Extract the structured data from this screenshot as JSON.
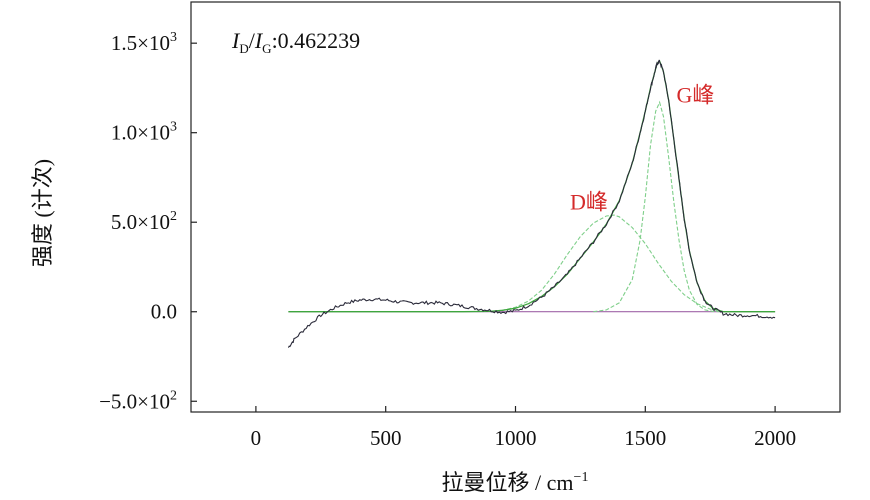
{
  "chart_data": {
    "type": "line",
    "title": "",
    "xlabel": "拉曼位移 / cm",
    "xlabel_sup": "−1",
    "ylabel": "强度 (计次)",
    "xlim": [
      -250,
      2250
    ],
    "ylim": [
      -560,
      1730
    ],
    "x_ticks": [
      {
        "value": 0,
        "label": "0"
      },
      {
        "value": 500,
        "label": "500"
      },
      {
        "value": 1000,
        "label": "1000"
      },
      {
        "value": 1500,
        "label": "1500"
      },
      {
        "value": 2000,
        "label": "2000"
      }
    ],
    "y_ticks": [
      {
        "value": -500,
        "label": "−5.0×10",
        "sup": "2"
      },
      {
        "value": 0,
        "label": "0.0",
        "sup": ""
      },
      {
        "value": 500,
        "label": "5.0×10",
        "sup": "2"
      },
      {
        "value": 1000,
        "label": "1.0×10",
        "sup": "3"
      },
      {
        "value": 1500,
        "label": "1.5×10",
        "sup": "3"
      }
    ],
    "grid": false,
    "annotations": [
      {
        "text": "D峰",
        "x": 1210,
        "y": 570,
        "color": "#d42a2a"
      },
      {
        "text": "G峰",
        "x": 1620,
        "y": 1170,
        "color": "#d42a2a"
      }
    ],
    "ratio_label": {
      "i1": "I",
      "sub1": "D",
      "slash": "/",
      "i2": "I",
      "sub2": "G",
      "value": ":0.462239"
    },
    "series": [
      {
        "role": "measured",
        "color": "#2b2b3a",
        "x": [
          125,
          150,
          200,
          250,
          300,
          350,
          400,
          450,
          500,
          550,
          600,
          650,
          700,
          750,
          800,
          850,
          900,
          950,
          1000,
          1050,
          1100,
          1150,
          1200,
          1250,
          1300,
          1350,
          1400,
          1450,
          1480,
          1500,
          1520,
          1535,
          1545,
          1555,
          1570,
          1590,
          1610,
          1630,
          1650,
          1670,
          1700,
          1730,
          1760,
          1800,
          1850,
          1900,
          1950,
          2000
        ],
        "y": [
          -200,
          -150,
          -80,
          -20,
          20,
          50,
          65,
          70,
          65,
          55,
          50,
          50,
          50,
          42,
          30,
          18,
          8,
          -3,
          5,
          35,
          80,
          140,
          210,
          300,
          390,
          490,
          620,
          830,
          1000,
          1120,
          1250,
          1330,
          1385,
          1400,
          1340,
          1180,
          960,
          740,
          520,
          340,
          160,
          60,
          20,
          -10,
          -20,
          -20,
          -25,
          -30
        ]
      },
      {
        "role": "fit",
        "color": "#3ea63e",
        "x": [
          125,
          800,
          900,
          950,
          1000,
          1050,
          1100,
          1150,
          1200,
          1250,
          1300,
          1350,
          1400,
          1450,
          1480,
          1500,
          1520,
          1535,
          1545,
          1555,
          1570,
          1590,
          1610,
          1630,
          1650,
          1670,
          1700,
          1730,
          1760,
          1800,
          2000
        ],
        "y": [
          0,
          0,
          2,
          8,
          20,
          45,
          85,
          140,
          210,
          300,
          390,
          490,
          620,
          830,
          1000,
          1120,
          1250,
          1330,
          1385,
          1400,
          1340,
          1180,
          960,
          740,
          520,
          340,
          160,
          60,
          20,
          0,
          0
        ]
      },
      {
        "role": "D-component",
        "color": "#7fcf8a",
        "x": [
          900,
          950,
          1000,
          1050,
          1100,
          1150,
          1200,
          1250,
          1300,
          1350,
          1380,
          1400,
          1450,
          1500,
          1550,
          1600,
          1650,
          1700,
          1750,
          1800
        ],
        "y": [
          2,
          8,
          25,
          60,
          120,
          210,
          320,
          420,
          495,
          535,
          540,
          530,
          470,
          380,
          270,
          170,
          95,
          45,
          15,
          0
        ]
      },
      {
        "role": "G-component",
        "color": "#7fcf8a",
        "x": [
          1300,
          1350,
          1400,
          1450,
          1480,
          1500,
          1520,
          1540,
          1555,
          1570,
          1590,
          1610,
          1630,
          1650,
          1670,
          1700,
          1730,
          1760,
          1800
        ],
        "y": [
          0,
          10,
          50,
          180,
          400,
          640,
          930,
          1120,
          1170,
          1090,
          860,
          610,
          400,
          230,
          120,
          40,
          10,
          2,
          0
        ]
      },
      {
        "role": "baseline",
        "color": "#a066a8",
        "x": [
          125,
          2000
        ],
        "y": [
          0,
          0
        ]
      }
    ]
  }
}
